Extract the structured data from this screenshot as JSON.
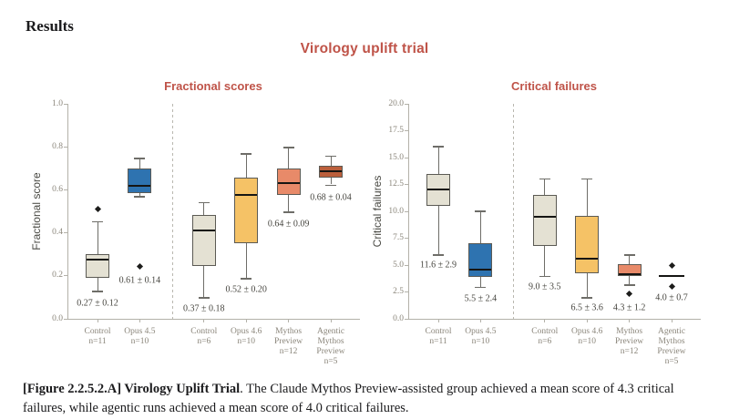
{
  "page": {
    "heading": "Results",
    "caption_bold": "[Figure 2.2.5.2.A] Virology Uplift Trial",
    "caption_rest": ". The Claude Mythos Preview-assisted group achieved a mean score of 4.3 critical failures, while agentic runs achieved a mean score of 4.0 critical failures."
  },
  "figure": {
    "title": "Virology uplift trial"
  },
  "colors": {
    "accent": "#bf5348",
    "axis": "#b3b1a9",
    "tick_text": "#8b867b",
    "annotation": "#45443e",
    "box_border": "#5b5a54",
    "median": "#151513",
    "whisker": "#6e6d68",
    "outlier": "#1d1d1b",
    "separator": "#b9b7af",
    "control_box": "#e4e1d3",
    "opus45_box": "#2e73b0",
    "opus46_box": "#f5c266",
    "mythos_box": "#e88a69",
    "agentic_box": "#bb5f3c"
  },
  "chart_data": [
    {
      "type": "box",
      "title": "Fractional scores",
      "ylabel": "Fractional score",
      "ylim": [
        0.0,
        1.0
      ],
      "grid": false,
      "split_after": 2,
      "yticks": [
        {
          "value": 0.0,
          "label": "0.0"
        },
        {
          "value": 0.2,
          "label": "0.2"
        },
        {
          "value": 0.4,
          "label": "0.4"
        },
        {
          "value": 0.6,
          "label": "0.6"
        },
        {
          "value": 0.8,
          "label": "0.8"
        },
        {
          "value": 1.0,
          "label": "1.0"
        }
      ],
      "boxes": [
        {
          "label_lines": [
            "Control",
            "n=11"
          ],
          "color": "#e4e1d3",
          "stats": {
            "whislo": 0.13,
            "q1": 0.19,
            "med": 0.275,
            "q3": 0.3,
            "whishi": 0.45
          },
          "outliers": [
            0.51
          ],
          "mean_label": "0.27 ± 0.12",
          "mean_label_y": 0.07
        },
        {
          "label_lines": [
            "Opus 4.5",
            "n=10"
          ],
          "color": "#2e73b0",
          "stats": {
            "whislo": 0.57,
            "q1": 0.585,
            "med": 0.62,
            "q3": 0.7,
            "whishi": 0.745
          },
          "outliers": [
            0.245
          ],
          "mean_label": "0.61 ± 0.14",
          "mean_label_y": 0.18
        },
        {
          "label_lines": [
            "Control",
            "n=6"
          ],
          "color": "#e4e1d3",
          "stats": {
            "whislo": 0.1,
            "q1": 0.245,
            "med": 0.41,
            "q3": 0.485,
            "whishi": 0.54
          },
          "outliers": [],
          "mean_label": "0.37 ± 0.18",
          "mean_label_y": 0.047
        },
        {
          "label_lines": [
            "Opus 4.6",
            "n=10"
          ],
          "color": "#f5c266",
          "stats": {
            "whislo": 0.19,
            "q1": 0.35,
            "med": 0.575,
            "q3": 0.655,
            "whishi": 0.765
          },
          "outliers": [],
          "mean_label": "0.52 ± 0.20",
          "mean_label_y": 0.135
        },
        {
          "label_lines": [
            "Mythos",
            "Preview",
            "n=12"
          ],
          "color": "#e88a69",
          "stats": {
            "whislo": 0.5,
            "q1": 0.578,
            "med": 0.632,
            "q3": 0.7,
            "whishi": 0.795
          },
          "outliers": [],
          "mean_label": "0.64 ± 0.09",
          "mean_label_y": 0.44
        },
        {
          "label_lines": [
            "Agentic",
            "Mythos",
            "Preview",
            "n=5"
          ],
          "color": "#bb5f3c",
          "stats": {
            "whislo": 0.625,
            "q1": 0.658,
            "med": 0.685,
            "q3": 0.712,
            "whishi": 0.755
          },
          "outliers": [],
          "mean_label": "0.68 ± 0.04",
          "mean_label_y": 0.565
        }
      ]
    },
    {
      "type": "box",
      "title": "Critical failures",
      "ylabel": "Critical failures",
      "ylim": [
        0.0,
        20.0
      ],
      "grid": false,
      "split_after": 2,
      "yticks": [
        {
          "value": 0.0,
          "label": "0.0"
        },
        {
          "value": 2.5,
          "label": "2.5"
        },
        {
          "value": 5.0,
          "label": "5.0"
        },
        {
          "value": 7.5,
          "label": "7.5"
        },
        {
          "value": 10.0,
          "label": "10.0"
        },
        {
          "value": 12.5,
          "label": "12.5"
        },
        {
          "value": 15.0,
          "label": "15.0"
        },
        {
          "value": 17.5,
          "label": "17.5"
        },
        {
          "value": 20.0,
          "label": "20.0"
        }
      ],
      "boxes": [
        {
          "label_lines": [
            "Control",
            "n=11"
          ],
          "color": "#e4e1d3",
          "stats": {
            "whislo": 6.0,
            "q1": 10.5,
            "med": 12.0,
            "q3": 13.5,
            "whishi": 16.0
          },
          "outliers": [],
          "mean_label": "11.6 ± 2.9",
          "mean_label_y": 5.0
        },
        {
          "label_lines": [
            "Opus 4.5",
            "n=10"
          ],
          "color": "#2e73b0",
          "stats": {
            "whislo": 3.0,
            "q1": 3.9,
            "med": 4.6,
            "q3": 7.0,
            "whishi": 10.0
          },
          "outliers": [],
          "mean_label": "5.5 ± 2.4",
          "mean_label_y": 1.85
        },
        {
          "label_lines": [
            "Control",
            "n=6"
          ],
          "color": "#e4e1d3",
          "stats": {
            "whislo": 4.0,
            "q1": 6.8,
            "med": 9.5,
            "q3": 11.5,
            "whishi": 13.0
          },
          "outliers": [],
          "mean_label": "9.0 ± 3.5",
          "mean_label_y": 2.95
        },
        {
          "label_lines": [
            "Opus 4.6",
            "n=10"
          ],
          "color": "#f5c266",
          "stats": {
            "whislo": 2.0,
            "q1": 4.2,
            "med": 5.6,
            "q3": 9.6,
            "whishi": 13.0
          },
          "outliers": [],
          "mean_label": "6.5 ± 3.6",
          "mean_label_y": 1.0
        },
        {
          "label_lines": [
            "Mythos",
            "Preview",
            "n=12"
          ],
          "color": "#e88a69",
          "stats": {
            "whislo": 3.2,
            "q1": 4.0,
            "med": 4.15,
            "q3": 5.1,
            "whishi": 5.9
          },
          "outliers": [
            2.3
          ],
          "mean_label": "4.3 ± 1.2",
          "mean_label_y": 1.0
        },
        {
          "label_lines": [
            "Agentic",
            "Mythos",
            "Preview",
            "n=5"
          ],
          "color": "#bb5f3c",
          "stats": {
            "whislo": 4.0,
            "q1": 4.0,
            "med": 4.0,
            "q3": 4.0,
            "whishi": 4.0
          },
          "outliers": [
            5.0,
            3.0
          ],
          "mean_label": "4.0 ± 0.7",
          "mean_label_y": 1.95
        }
      ]
    }
  ]
}
